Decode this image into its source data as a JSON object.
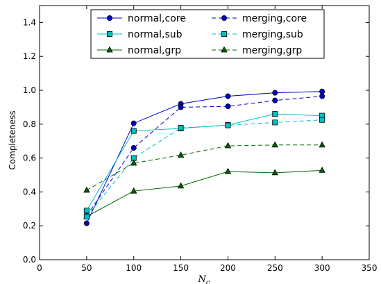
{
  "chart_data": {
    "type": "line",
    "xlabel": "N_c",
    "ylabel": "Completeness",
    "xlim": [
      0,
      350
    ],
    "ylim": [
      0.0,
      1.5
    ],
    "xticks": [
      "0",
      "50",
      "100",
      "150",
      "200",
      "250",
      "300",
      "350"
    ],
    "yticks": [
      "0.0",
      "0.2",
      "0.4",
      "0.6",
      "0.8",
      "1.0",
      "1.2",
      "1.4"
    ],
    "legend_position": "top-center",
    "x": [
      50,
      100,
      150,
      200,
      250,
      300
    ],
    "series": [
      {
        "name": "normal,core",
        "values": [
          0.215,
          0.805,
          0.92,
          0.965,
          0.985,
          0.993
        ],
        "color": "#0000cc",
        "marker": "circle",
        "linestyle": "solid"
      },
      {
        "name": "normal,sub",
        "values": [
          0.29,
          0.76,
          0.775,
          0.795,
          0.86,
          0.85
        ],
        "color": "#00bfbf",
        "marker": "square",
        "linestyle": "solid"
      },
      {
        "name": "normal,grp",
        "values": [
          0.255,
          0.405,
          0.435,
          0.52,
          0.513,
          0.527
        ],
        "color": "#006400",
        "marker": "triangle",
        "linestyle": "solid"
      },
      {
        "name": "merging,core",
        "values": [
          0.26,
          0.66,
          0.9,
          0.905,
          0.94,
          0.965
        ],
        "color": "#0000cc",
        "marker": "circle",
        "linestyle": "dashed"
      },
      {
        "name": "merging,sub",
        "values": [
          0.255,
          0.6,
          0.778,
          0.793,
          0.81,
          0.825
        ],
        "color": "#00bfbf",
        "marker": "square",
        "linestyle": "dashed"
      },
      {
        "name": "merging,grp",
        "values": [
          0.41,
          0.57,
          0.617,
          0.672,
          0.677,
          0.677
        ],
        "color": "#006400",
        "marker": "triangle",
        "linestyle": "dashed"
      }
    ]
  }
}
